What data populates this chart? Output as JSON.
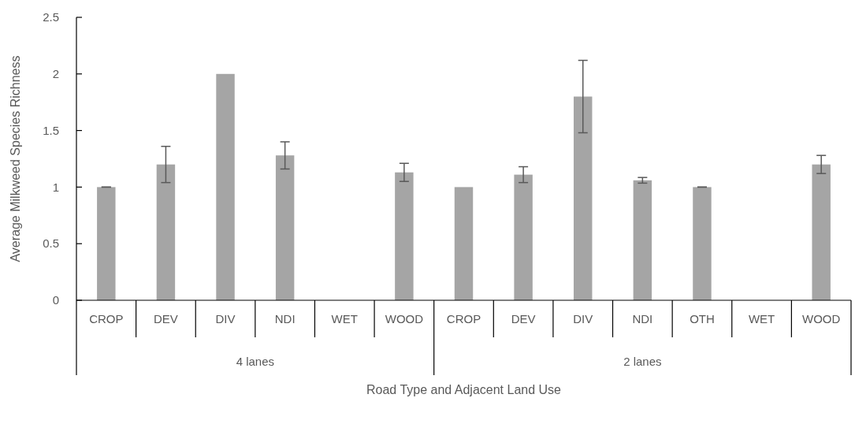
{
  "chart_data": {
    "type": "bar",
    "xlabel": "Road Type and Adjacent Land Use",
    "ylabel": "Average Milkweed Species Richness",
    "categories": [
      "CROP",
      "DEV",
      "DIV",
      "NDI",
      "WET",
      "WOOD",
      "CROP",
      "DEV",
      "DIV",
      "NDI",
      "OTH",
      "WET",
      "WOOD"
    ],
    "values": [
      1,
      1.2,
      2,
      1.28,
      null,
      1.13,
      1,
      1.11,
      1.8,
      1.06,
      1,
      null,
      1.2
    ],
    "errors": [
      0,
      0.16,
      null,
      0.12,
      null,
      0.08,
      null,
      0.07,
      0.32,
      0.025,
      0,
      null,
      0.08
    ],
    "color": "#a5a5a5",
    "ylim": [
      0,
      2.5
    ],
    "yticks": [
      0,
      0.5,
      1,
      1.5,
      2,
      2.5
    ],
    "annotations": [
      "4 lanes",
      "2 lanes"
    ],
    "grid": false
  }
}
